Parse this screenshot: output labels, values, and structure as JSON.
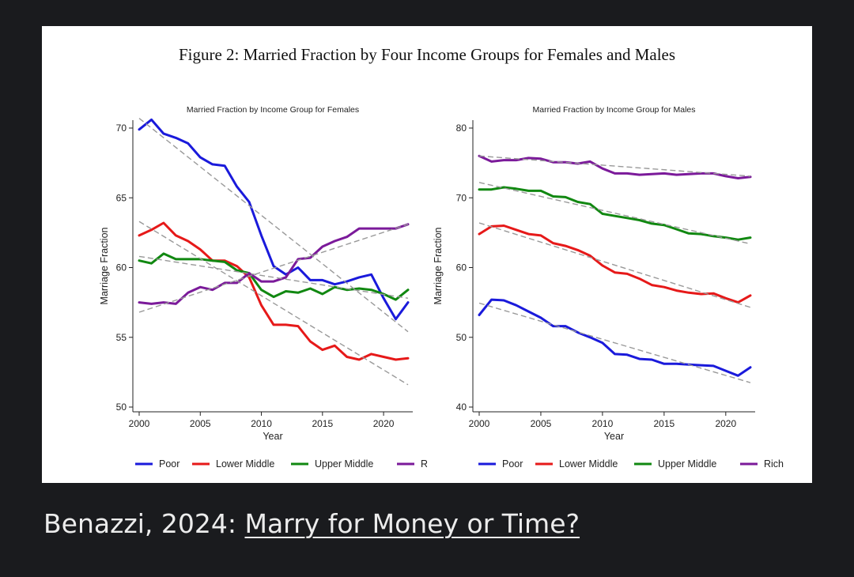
{
  "figure": {
    "title": "Figure 2: Married Fraction by Four Income Groups for Females and Males"
  },
  "caption": {
    "prefix": "Benazzi, 2024: ",
    "link_text": "Marry for Money or Time?"
  },
  "chart_data": [
    {
      "type": "line",
      "title": "Married Fraction by Income Group for Females",
      "xlabel": "Year",
      "ylabel": "Marriage Fraction",
      "xlim": [
        2000,
        2022
      ],
      "ylim": [
        50,
        70
      ],
      "xticks": [
        2000,
        2005,
        2010,
        2015,
        2020
      ],
      "yticks": [
        50,
        55,
        60,
        65,
        70
      ],
      "legend": "bottom",
      "x": [
        2000,
        2001,
        2002,
        2003,
        2004,
        2005,
        2006,
        2007,
        2008,
        2009,
        2010,
        2011,
        2012,
        2013,
        2014,
        2015,
        2016,
        2017,
        2018,
        2019,
        2020,
        2021,
        2022
      ],
      "series": [
        {
          "name": "Poor",
          "color": "#1a1adb",
          "values": [
            69.9,
            70.6,
            69.6,
            69.3,
            68.9,
            67.9,
            67.4,
            67.3,
            65.8,
            64.7,
            62.3,
            60.1,
            59.5,
            60.0,
            59.1,
            59.1,
            58.8,
            59.0,
            59.3,
            59.5,
            57.8,
            56.3,
            57.5
          ]
        },
        {
          "name": "Lower Middle",
          "color": "#e61919",
          "values": [
            62.3,
            62.7,
            63.2,
            62.3,
            61.9,
            61.3,
            60.5,
            60.5,
            60.1,
            59.3,
            57.3,
            55.9,
            55.9,
            55.8,
            54.7,
            54.1,
            54.4,
            53.6,
            53.4,
            53.8,
            53.6,
            53.4,
            53.5
          ]
        },
        {
          "name": "Upper Middle",
          "color": "#118811",
          "values": [
            60.5,
            60.3,
            61.0,
            60.6,
            60.6,
            60.6,
            60.5,
            60.4,
            59.8,
            59.6,
            58.4,
            57.9,
            58.3,
            58.2,
            58.5,
            58.1,
            58.6,
            58.4,
            58.5,
            58.4,
            58.1,
            57.7,
            58.4
          ]
        },
        {
          "name": "Rich",
          "color": "#7b1a9a",
          "values": [
            57.5,
            57.4,
            57.5,
            57.4,
            58.2,
            58.6,
            58.4,
            58.9,
            58.9,
            59.6,
            59.0,
            59.0,
            59.3,
            60.6,
            60.7,
            61.5,
            61.9,
            62.2,
            62.8,
            62.8,
            62.8,
            62.8,
            63.1
          ]
        }
      ],
      "trendlines": [
        {
          "series": "Poor",
          "start": 70.7,
          "end": 55.4
        },
        {
          "series": "Lower Middle",
          "start": 63.3,
          "end": 51.6
        },
        {
          "series": "Upper Middle",
          "start": 60.8,
          "end": 57.8
        },
        {
          "series": "Rich",
          "start": 56.8,
          "end": 63.1
        }
      ]
    },
    {
      "type": "line",
      "title": "Married Fraction by Income Group for Males",
      "xlabel": "Year",
      "ylabel": "Marriage Fraction",
      "xlim": [
        2000,
        2022
      ],
      "ylim": [
        40,
        80
      ],
      "xticks": [
        2000,
        2005,
        2010,
        2015,
        2020
      ],
      "yticks": [
        40,
        50,
        60,
        70,
        80
      ],
      "legend": "bottom",
      "x": [
        2000,
        2001,
        2002,
        2003,
        2004,
        2005,
        2006,
        2007,
        2008,
        2009,
        2010,
        2011,
        2012,
        2013,
        2014,
        2015,
        2016,
        2017,
        2018,
        2019,
        2020,
        2021,
        2022
      ],
      "series": [
        {
          "name": "Poor",
          "color": "#1a1adb",
          "values": [
            53.2,
            55.4,
            55.3,
            54.6,
            53.7,
            52.8,
            51.6,
            51.6,
            50.7,
            50.0,
            49.2,
            47.6,
            47.5,
            46.9,
            46.8,
            46.2,
            46.2,
            46.1,
            46.0,
            45.9,
            45.2,
            44.5,
            45.7
          ]
        },
        {
          "name": "Lower Middle",
          "color": "#e61919",
          "values": [
            64.8,
            65.9,
            66.0,
            65.4,
            64.8,
            64.6,
            63.5,
            63.1,
            62.5,
            61.7,
            60.3,
            59.3,
            59.1,
            58.4,
            57.5,
            57.2,
            56.7,
            56.4,
            56.2,
            56.3,
            55.6,
            55.0,
            56.0
          ]
        },
        {
          "name": "Upper Middle",
          "color": "#118811",
          "values": [
            71.2,
            71.2,
            71.5,
            71.3,
            71.0,
            71.0,
            70.2,
            70.1,
            69.4,
            69.1,
            67.7,
            67.4,
            67.1,
            66.8,
            66.3,
            66.1,
            65.5,
            64.9,
            64.8,
            64.5,
            64.3,
            64.0,
            64.3
          ]
        },
        {
          "name": "Rich",
          "color": "#7b1a9a",
          "values": [
            76.0,
            75.2,
            75.4,
            75.4,
            75.7,
            75.6,
            75.1,
            75.1,
            74.9,
            75.2,
            74.2,
            73.5,
            73.5,
            73.3,
            73.4,
            73.5,
            73.3,
            73.4,
            73.5,
            73.5,
            73.1,
            72.8,
            73.0
          ]
        }
      ],
      "trendlines": [
        {
          "series": "Poor",
          "start": 54.9,
          "end": 43.5
        },
        {
          "series": "Lower Middle",
          "start": 66.4,
          "end": 54.3
        },
        {
          "series": "Upper Middle",
          "start": 72.2,
          "end": 63.4
        },
        {
          "series": "Rich",
          "start": 76.0,
          "end": 73.1
        }
      ]
    }
  ]
}
